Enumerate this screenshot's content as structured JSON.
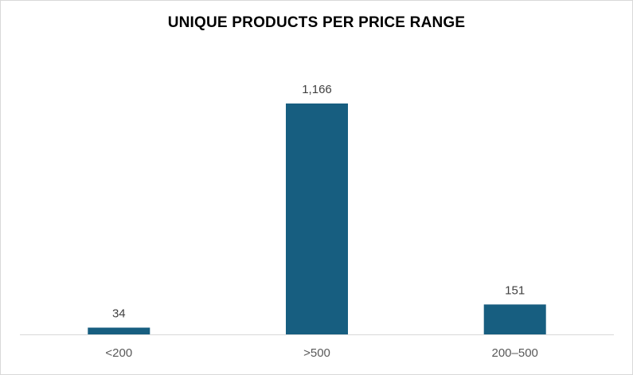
{
  "chart_data": {
    "type": "bar",
    "title": "UNIQUE PRODUCTS PER PRICE RANGE",
    "categories": [
      "<200",
      ">500",
      "200–500"
    ],
    "values": [
      34,
      1166,
      151
    ],
    "value_labels": [
      "34",
      "1,166",
      "151"
    ],
    "xlabel": "",
    "ylabel": "",
    "ylim": [
      0,
      1166
    ],
    "grid": false,
    "legend": "none",
    "bar_color": "#175E80",
    "axis_color": "#d9d9d9"
  }
}
